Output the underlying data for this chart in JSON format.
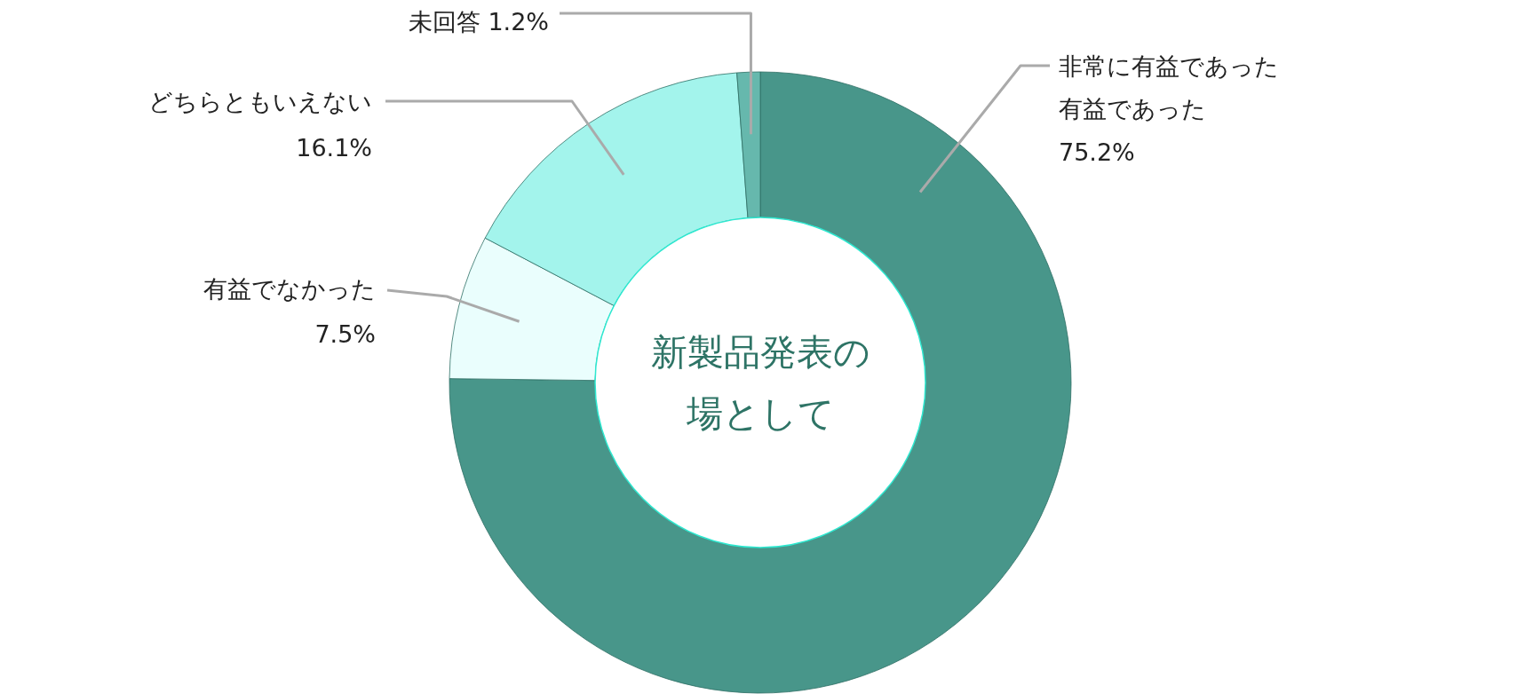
{
  "chart_data": {
    "type": "donut",
    "title": "新製品発表の場として",
    "categories": [
      "非常に有益であった有益であった",
      "有益でなかった",
      "どちらともいえない",
      "未回答"
    ],
    "values": [
      75.2,
      7.5,
      16.1,
      1.2
    ],
    "value_labels": [
      "75.2%",
      "7.5%",
      "16.1%",
      "1.2%"
    ],
    "colors": [
      "#48968a",
      "#eafefd",
      "#a3f4ec",
      "#66b8ad"
    ]
  }
}
